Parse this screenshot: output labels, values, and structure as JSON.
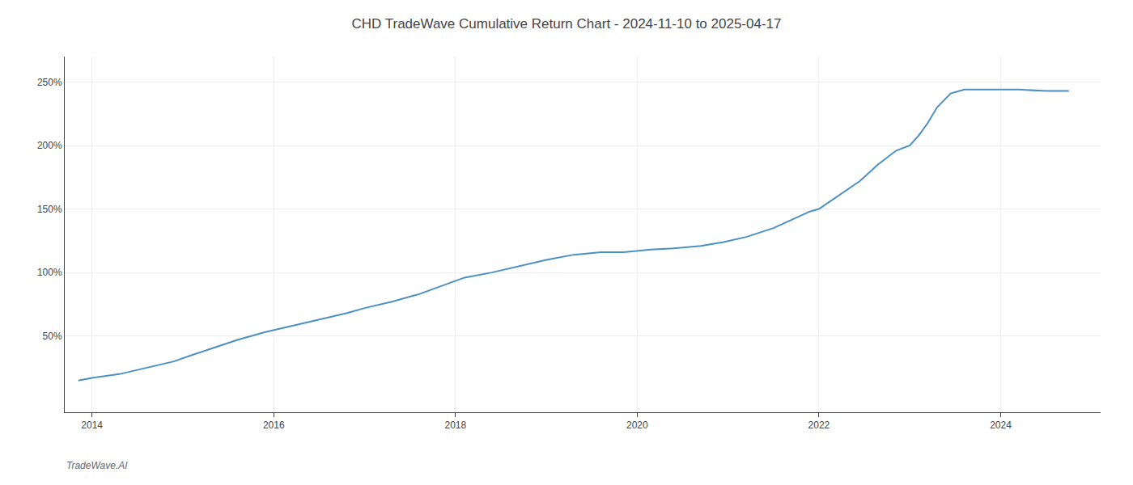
{
  "chart_data": {
    "type": "line",
    "title": "CHD TradeWave Cumulative Return Chart - 2024-11-10 to 2025-04-17",
    "annotations": [
      "TradeWave.AI"
    ],
    "color": "#4a90c4",
    "x": [
      2013.85,
      2014.0,
      2014.3,
      2014.6,
      2014.9,
      2015.1,
      2015.3,
      2015.6,
      2015.9,
      2016.2,
      2016.5,
      2016.8,
      2017.0,
      2017.3,
      2017.6,
      2017.9,
      2018.1,
      2018.4,
      2018.7,
      2019.0,
      2019.3,
      2019.6,
      2019.85,
      2020.0,
      2020.15,
      2020.4,
      2020.7,
      2020.95,
      2021.2,
      2021.5,
      2021.75,
      2021.9,
      2022.0,
      2022.2,
      2022.45,
      2022.65,
      2022.85,
      2023.0,
      2023.1,
      2023.2,
      2023.3,
      2023.45,
      2023.6,
      2023.8,
      2024.0,
      2024.2,
      2024.5,
      2024.75
    ],
    "values": [
      15,
      17,
      20,
      25,
      30,
      35,
      40,
      47,
      53,
      58,
      63,
      68,
      72,
      77,
      83,
      91,
      96,
      100,
      105,
      110,
      114,
      116,
      116,
      117,
      118,
      119,
      121,
      124,
      128,
      135,
      143,
      148,
      150,
      160,
      172,
      185,
      196,
      200,
      208,
      218,
      230,
      241,
      244,
      244,
      244,
      244,
      243,
      243
    ],
    "xlim": [
      2013.7,
      2025.1
    ],
    "ylim": [
      -10,
      270
    ],
    "xticks": [
      2014,
      2016,
      2018,
      2020,
      2022,
      2024
    ],
    "yticks": [
      {
        "value": 50,
        "label": "50%"
      },
      {
        "value": 100,
        "label": "100%"
      },
      {
        "value": 150,
        "label": "150%"
      },
      {
        "value": 200,
        "label": "200%"
      },
      {
        "value": 250,
        "label": "250%"
      }
    ],
    "grid": true
  }
}
